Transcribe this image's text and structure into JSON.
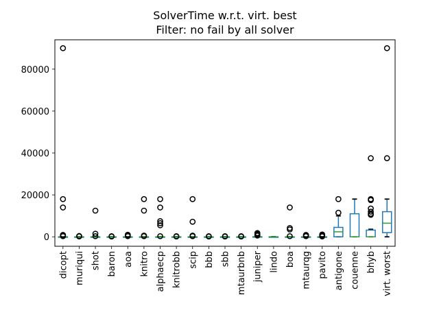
{
  "chart_data": {
    "type": "box",
    "title": "SolverTime w.r.t. virt. best",
    "subtitle": "Filter: no fail by all solver",
    "xlabel": "",
    "ylabel": "",
    "ylim": [
      -4500,
      94000
    ],
    "yticks": [
      0,
      20000,
      40000,
      60000,
      80000
    ],
    "ytick_labels": [
      "0",
      "20000",
      "40000",
      "60000",
      "80000"
    ],
    "grid": false,
    "legend": "none",
    "colors": {
      "box": "#1f77b4",
      "median": "#2ca02c",
      "whisker": "#000000",
      "flier": "#000000"
    },
    "categories": [
      "dicopt",
      "muriqui",
      "shot",
      "baron",
      "aoa",
      "knitro",
      "alphaecp",
      "knitrobb",
      "scip",
      "bbb",
      "sbb",
      "mtaurbnb",
      "juniper",
      "lindo",
      "boa",
      "mtaurqg",
      "pavito",
      "antigone",
      "couenne",
      "bhyb",
      "virt. worst"
    ],
    "boxes": [
      {
        "name": "dicopt",
        "q1": 0,
        "median": 0,
        "q3": 30,
        "whislo": 0,
        "whishi": 60,
        "fliers": [
          300,
          600,
          900,
          14000,
          18000,
          90000
        ]
      },
      {
        "name": "muriqui",
        "q1": 0,
        "median": 0,
        "q3": 20,
        "whislo": 0,
        "whishi": 50,
        "fliers": [
          200,
          400
        ]
      },
      {
        "name": "shot",
        "q1": 0,
        "median": 0,
        "q3": 20,
        "whislo": 0,
        "whishi": 50,
        "fliers": [
          300,
          1500,
          12500
        ]
      },
      {
        "name": "baron",
        "q1": 0,
        "median": 0,
        "q3": 20,
        "whislo": 0,
        "whishi": 50,
        "fliers": [
          150,
          300
        ]
      },
      {
        "name": "aoa",
        "q1": 0,
        "median": 0,
        "q3": 20,
        "whislo": 0,
        "whishi": 50,
        "fliers": [
          300,
          700,
          1000
        ]
      },
      {
        "name": "knitro",
        "q1": 0,
        "median": 0,
        "q3": 20,
        "whislo": 0,
        "whishi": 50,
        "fliers": [
          300,
          600,
          12500,
          18000
        ]
      },
      {
        "name": "alphaecp",
        "q1": 0,
        "median": 0,
        "q3": 20,
        "whislo": 0,
        "whishi": 50,
        "fliers": [
          300,
          5500,
          6500,
          7500,
          14000,
          18000
        ]
      },
      {
        "name": "knitrobb",
        "q1": 0,
        "median": 0,
        "q3": 20,
        "whislo": 0,
        "whishi": 50,
        "fliers": [
          150,
          300
        ]
      },
      {
        "name": "scip",
        "q1": 0,
        "median": 0,
        "q3": 20,
        "whislo": 0,
        "whishi": 50,
        "fliers": [
          300,
          600,
          7200,
          18000
        ]
      },
      {
        "name": "bbb",
        "q1": 0,
        "median": 0,
        "q3": 20,
        "whislo": 0,
        "whishi": 50,
        "fliers": [
          150,
          300
        ]
      },
      {
        "name": "sbb",
        "q1": 0,
        "median": 0,
        "q3": 20,
        "whislo": 0,
        "whishi": 50,
        "fliers": [
          150,
          300
        ]
      },
      {
        "name": "mtaurbnb",
        "q1": 0,
        "median": 0,
        "q3": 20,
        "whislo": 0,
        "whishi": 50,
        "fliers": [
          150,
          300
        ]
      },
      {
        "name": "juniper",
        "q1": 0,
        "median": 0,
        "q3": 80,
        "whislo": 0,
        "whishi": 200,
        "fliers": [
          600,
          1000,
          1500,
          1800
        ]
      },
      {
        "name": "lindo",
        "q1": 0,
        "median": 0,
        "q3": 30,
        "whislo": 0,
        "whishi": 60,
        "fliers": []
      },
      {
        "name": "boa",
        "q1": 0,
        "median": 0,
        "q3": 20,
        "whislo": 0,
        "whishi": 50,
        "fliers": [
          300,
          3500,
          4200,
          14000
        ]
      },
      {
        "name": "mtaurqg",
        "q1": 0,
        "median": 0,
        "q3": 20,
        "whislo": 0,
        "whishi": 50,
        "fliers": [
          300,
          600,
          900
        ]
      },
      {
        "name": "pavito",
        "q1": 0,
        "median": 0,
        "q3": 20,
        "whislo": 0,
        "whishi": 50,
        "fliers": [
          200,
          500,
          800,
          1100
        ]
      },
      {
        "name": "antigone",
        "q1": 0,
        "median": 2400,
        "q3": 4500,
        "whislo": 0,
        "whishi": 10000,
        "fliers": [
          11500,
          18000
        ]
      },
      {
        "name": "couenne",
        "q1": 0,
        "median": 0,
        "q3": 11000,
        "whislo": 0,
        "whishi": 18000,
        "fliers": []
      },
      {
        "name": "bhyb",
        "q1": 0,
        "median": 0,
        "q3": 3200,
        "whislo": 0,
        "whishi": 3600,
        "fliers": [
          10500,
          11000,
          12000,
          13500,
          17500,
          18000,
          37500
        ]
      },
      {
        "name": "virt. worst",
        "q1": 2000,
        "median": 6500,
        "q3": 12000,
        "whislo": 0,
        "whishi": 18000,
        "fliers": [
          37500,
          90000
        ]
      }
    ]
  }
}
